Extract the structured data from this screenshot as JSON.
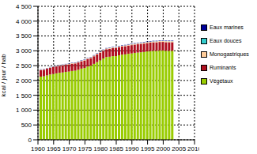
{
  "chart_data": {
    "type": "bar",
    "stacked": true,
    "grid": true,
    "legend": "right",
    "y_label": "kcal / jour / hab",
    "x": [
      1961,
      1962,
      1963,
      1964,
      1965,
      1966,
      1967,
      1968,
      1969,
      1970,
      1971,
      1972,
      1973,
      1974,
      1975,
      1976,
      1977,
      1978,
      1979,
      1980,
      1981,
      1982,
      1983,
      1984,
      1985,
      1986,
      1987,
      1988,
      1989,
      1990,
      1991,
      1992,
      1993,
      1994,
      1995,
      1996,
      1997,
      1998,
      1999,
      2000,
      2001,
      2002,
      2003
    ],
    "xlim": [
      1960,
      2010
    ],
    "xticks": [
      1960,
      1965,
      1970,
      1975,
      1980,
      1985,
      1990,
      1995,
      2000,
      2005,
      2010
    ],
    "ylim": [
      0,
      4500
    ],
    "yticks": [
      0,
      500,
      {
        "value": 1000,
        "label": "1 000"
      },
      {
        "value": 1500,
        "label": "1 500"
      },
      {
        "value": 2000,
        "label": "2 000"
      },
      {
        "value": 2500,
        "label": "2 500"
      },
      {
        "value": 3000,
        "label": "3 000"
      },
      {
        "value": 3500,
        "label": "3 500"
      },
      {
        "value": 4000,
        "label": "4 000"
      },
      {
        "value": 4500,
        "label": "4 500"
      }
    ],
    "series": [
      {
        "name": "Végétaux",
        "color": "#99cc00",
        "values": [
          2130,
          2140,
          2170,
          2200,
          2220,
          2240,
          2260,
          2270,
          2290,
          2300,
          2320,
          2330,
          2360,
          2400,
          2420,
          2470,
          2500,
          2560,
          2620,
          2680,
          2740,
          2790,
          2800,
          2820,
          2820,
          2850,
          2870,
          2880,
          2900,
          2910,
          2930,
          2940,
          2950,
          2960,
          2980,
          2990,
          3000,
          3000,
          3010,
          3010,
          3000,
          3000,
          3000
        ]
      },
      {
        "name": "Ruminants",
        "color": "#b01020",
        "values": [
          220,
          222,
          225,
          228,
          230,
          232,
          234,
          236,
          238,
          240,
          242,
          244,
          246,
          248,
          250,
          252,
          254,
          256,
          258,
          260,
          262,
          264,
          266,
          268,
          270,
          272,
          274,
          276,
          278,
          280,
          280,
          281,
          282,
          283,
          284,
          285,
          286,
          287,
          288,
          289,
          290,
          290,
          290
        ]
      },
      {
        "name": "Monogastriques",
        "color": "#ffcc99",
        "values": [
          15,
          15,
          16,
          16,
          17,
          17,
          18,
          18,
          19,
          19,
          20,
          20,
          21,
          21,
          22,
          22,
          23,
          23,
          24,
          24,
          25,
          25,
          26,
          26,
          27,
          27,
          28,
          28,
          29,
          29,
          30,
          30,
          30,
          31,
          31,
          31,
          32,
          32,
          32,
          33,
          33,
          33,
          33
        ]
      },
      {
        "name": "Eaux douces",
        "color": "#33cccc",
        "values": [
          2,
          2,
          2,
          2,
          2,
          2,
          2,
          2,
          2,
          2,
          3,
          3,
          3,
          3,
          3,
          3,
          3,
          3,
          3,
          3,
          3,
          3,
          3,
          3,
          4,
          4,
          4,
          4,
          4,
          4,
          4,
          4,
          5,
          5,
          5,
          5,
          5,
          5,
          5,
          5,
          5,
          5,
          5
        ]
      },
      {
        "name": "Eaux marines",
        "color": "#000099",
        "values": [
          8,
          8,
          8,
          9,
          9,
          9,
          9,
          10,
          10,
          10,
          10,
          10,
          11,
          11,
          11,
          11,
          11,
          12,
          12,
          12,
          12,
          12,
          12,
          13,
          13,
          13,
          13,
          13,
          13,
          14,
          14,
          14,
          14,
          14,
          14,
          14,
          14,
          14,
          15,
          15,
          15,
          15,
          15
        ]
      }
    ]
  }
}
